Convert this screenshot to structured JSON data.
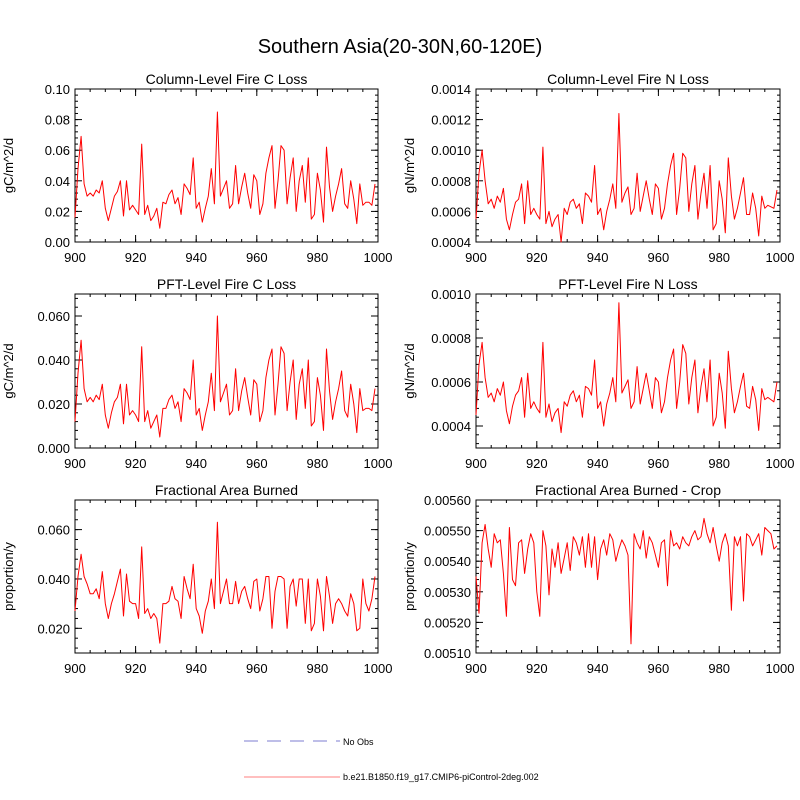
{
  "figure": {
    "title": "Southern Asia(20-30N,60-120E)",
    "legend": [
      {
        "label": "No Obs",
        "style": "dashed",
        "color": "#a8a8e0"
      },
      {
        "label": "b.e21.B1850.f19_g17.CMIP6-piControl-2deg.002",
        "style": "solid",
        "color": "#ff0000"
      }
    ]
  },
  "chart_data": [
    {
      "type": "line",
      "title": "Column-Level Fire C Loss",
      "ylabel": "gC/m^2/d",
      "xlim": [
        900,
        1000
      ],
      "ylim": [
        0,
        0.1
      ],
      "xticks": [
        900,
        920,
        940,
        960,
        980,
        1000
      ],
      "xtick_labels": [
        "900",
        "920",
        "940",
        "960",
        "980",
        "1000"
      ],
      "yticks": [
        0,
        0.02,
        0.04,
        0.06,
        0.08,
        0.1
      ],
      "ytick_labels": [
        "0.00",
        "0.02",
        "0.04",
        "0.06",
        "0.08",
        "0.10"
      ],
      "series": [
        {
          "name": "b.e21.B1850.f19_g17.CMIP6-piControl-2deg.002",
          "color": "#ff0000",
          "x_start": 900,
          "x_step": 1,
          "values": [
            0.016,
            0.048,
            0.069,
            0.038,
            0.03,
            0.032,
            0.03,
            0.034,
            0.032,
            0.04,
            0.022,
            0.014,
            0.022,
            0.03,
            0.033,
            0.04,
            0.017,
            0.04,
            0.021,
            0.024,
            0.021,
            0.018,
            0.064,
            0.018,
            0.024,
            0.014,
            0.017,
            0.022,
            0.009,
            0.026,
            0.025,
            0.031,
            0.034,
            0.025,
            0.029,
            0.018,
            0.038,
            0.035,
            0.031,
            0.055,
            0.022,
            0.026,
            0.013,
            0.022,
            0.03,
            0.048,
            0.025,
            0.085,
            0.03,
            0.035,
            0.04,
            0.022,
            0.025,
            0.05,
            0.025,
            0.036,
            0.045,
            0.032,
            0.022,
            0.044,
            0.04,
            0.018,
            0.025,
            0.045,
            0.055,
            0.063,
            0.022,
            0.04,
            0.063,
            0.06,
            0.025,
            0.042,
            0.055,
            0.02,
            0.04,
            0.05,
            0.026,
            0.055,
            0.015,
            0.018,
            0.045,
            0.034,
            0.013,
            0.062,
            0.036,
            0.02,
            0.03,
            0.038,
            0.048,
            0.025,
            0.022,
            0.04,
            0.028,
            0.012,
            0.038,
            0.024,
            0.026,
            0.026,
            0.024,
            0.038
          ]
        }
      ]
    },
    {
      "type": "line",
      "title": "Column-Level Fire N Loss",
      "ylabel": "gN/m^2/d",
      "xlim": [
        900,
        1000
      ],
      "ylim": [
        0.0004,
        0.0014
      ],
      "xticks": [
        900,
        920,
        940,
        960,
        980,
        1000
      ],
      "xtick_labels": [
        "900",
        "920",
        "940",
        "960",
        "980",
        "1000"
      ],
      "yticks": [
        0.0004,
        0.0006,
        0.0008,
        0.001,
        0.0012,
        0.0014
      ],
      "ytick_labels": [
        "0.0004",
        "0.0006",
        "0.0008",
        "0.0010",
        "0.0012",
        "0.0014"
      ],
      "series": [
        {
          "name": "b.e21.B1850.f19_g17.CMIP6-piControl-2deg.002",
          "color": "#ff0000",
          "x_start": 900,
          "x_step": 1,
          "values": [
            0.00055,
            0.00085,
            0.001,
            0.0008,
            0.00065,
            0.00068,
            0.00062,
            0.0007,
            0.00066,
            0.00075,
            0.00055,
            0.00048,
            0.00058,
            0.00066,
            0.00068,
            0.00078,
            0.00052,
            0.0008,
            0.00058,
            0.00062,
            0.00058,
            0.00055,
            0.00102,
            0.00052,
            0.0006,
            0.0005,
            0.00055,
            0.00058,
            0.0004,
            0.00062,
            0.00058,
            0.00066,
            0.00068,
            0.00062,
            0.00065,
            0.00052,
            0.00072,
            0.0007,
            0.00066,
            0.0009,
            0.00058,
            0.00062,
            0.00048,
            0.0006,
            0.00068,
            0.00078,
            0.00062,
            0.00124,
            0.00066,
            0.00072,
            0.00076,
            0.00058,
            0.00062,
            0.00085,
            0.0006,
            0.0007,
            0.0008,
            0.00068,
            0.00058,
            0.00078,
            0.00075,
            0.00055,
            0.00062,
            0.00078,
            0.0009,
            0.00098,
            0.00058,
            0.00075,
            0.00098,
            0.00095,
            0.0006,
            0.00078,
            0.0009,
            0.00055,
            0.00072,
            0.00085,
            0.00062,
            0.0009,
            0.00048,
            0.00052,
            0.0008,
            0.00068,
            0.00046,
            0.00095,
            0.0007,
            0.00055,
            0.00062,
            0.00072,
            0.00082,
            0.00058,
            0.00058,
            0.00072,
            0.00062,
            0.00044,
            0.0007,
            0.00062,
            0.00064,
            0.00063,
            0.00062,
            0.00074
          ]
        }
      ]
    },
    {
      "type": "line",
      "title": "PFT-Level Fire C Loss",
      "ylabel": "gC/m^2/d",
      "xlim": [
        900,
        1000
      ],
      "ylim": [
        0,
        0.07
      ],
      "xticks": [
        900,
        920,
        940,
        960,
        980,
        1000
      ],
      "xtick_labels": [
        "900",
        "920",
        "940",
        "960",
        "980",
        "1000"
      ],
      "yticks": [
        0,
        0.02,
        0.04,
        0.06
      ],
      "ytick_labels": [
        "0.000",
        "0.020",
        "0.040",
        "0.060"
      ],
      "series": [
        {
          "name": "b.e21.B1850.f19_g17.CMIP6-piControl-2deg.002",
          "color": "#ff0000",
          "x_start": 900,
          "x_step": 1,
          "values": [
            0.012,
            0.034,
            0.049,
            0.027,
            0.021,
            0.023,
            0.021,
            0.024,
            0.022,
            0.029,
            0.015,
            0.009,
            0.016,
            0.021,
            0.023,
            0.029,
            0.011,
            0.029,
            0.015,
            0.017,
            0.015,
            0.012,
            0.046,
            0.012,
            0.017,
            0.009,
            0.012,
            0.015,
            0.005,
            0.018,
            0.018,
            0.022,
            0.024,
            0.018,
            0.021,
            0.012,
            0.027,
            0.025,
            0.022,
            0.04,
            0.015,
            0.018,
            0.008,
            0.015,
            0.021,
            0.034,
            0.017,
            0.06,
            0.021,
            0.025,
            0.029,
            0.015,
            0.017,
            0.036,
            0.017,
            0.026,
            0.032,
            0.023,
            0.015,
            0.031,
            0.029,
            0.012,
            0.017,
            0.032,
            0.04,
            0.045,
            0.015,
            0.029,
            0.046,
            0.043,
            0.017,
            0.03,
            0.04,
            0.013,
            0.029,
            0.036,
            0.018,
            0.04,
            0.01,
            0.012,
            0.032,
            0.024,
            0.008,
            0.045,
            0.026,
            0.013,
            0.021,
            0.027,
            0.035,
            0.017,
            0.014,
            0.029,
            0.02,
            0.007,
            0.027,
            0.017,
            0.018,
            0.018,
            0.017,
            0.027
          ]
        }
      ]
    },
    {
      "type": "line",
      "title": "PFT-Level Fire N Loss",
      "ylabel": "gN/m^2/d",
      "xlim": [
        900,
        1000
      ],
      "ylim": [
        0.0003,
        0.001
      ],
      "xticks": [
        900,
        920,
        940,
        960,
        980,
        1000
      ],
      "xtick_labels": [
        "900",
        "920",
        "940",
        "960",
        "980",
        "1000"
      ],
      "yticks": [
        0.0004,
        0.0006,
        0.0008,
        0.001
      ],
      "ytick_labels": [
        "0.0004",
        "0.0006",
        "0.0008",
        "0.0010"
      ],
      "series": [
        {
          "name": "b.e21.B1850.f19_g17.CMIP6-piControl-2deg.002",
          "color": "#ff0000",
          "x_start": 900,
          "x_step": 1,
          "values": [
            0.00045,
            0.00068,
            0.00078,
            0.00062,
            0.00053,
            0.00055,
            0.00051,
            0.00057,
            0.00054,
            0.0006,
            0.00047,
            0.00041,
            0.00049,
            0.00054,
            0.00056,
            0.00062,
            0.00044,
            0.00064,
            0.00048,
            0.00051,
            0.00048,
            0.00046,
            0.00078,
            0.00044,
            0.0005,
            0.00042,
            0.00046,
            0.00048,
            0.00037,
            0.00051,
            0.00049,
            0.00054,
            0.00056,
            0.00051,
            0.00054,
            0.00044,
            0.00058,
            0.00057,
            0.00054,
            0.0007,
            0.00048,
            0.00051,
            0.0004,
            0.0005,
            0.00055,
            0.00062,
            0.00051,
            0.00096,
            0.00055,
            0.00058,
            0.00061,
            0.00048,
            0.00051,
            0.00067,
            0.0005,
            0.00057,
            0.00064,
            0.00056,
            0.00048,
            0.00062,
            0.0006,
            0.00046,
            0.00051,
            0.00062,
            0.0007,
            0.00075,
            0.00048,
            0.0006,
            0.00077,
            0.00073,
            0.0005,
            0.00062,
            0.0007,
            0.00046,
            0.00058,
            0.00066,
            0.00051,
            0.0007,
            0.0004,
            0.00044,
            0.00064,
            0.00055,
            0.00039,
            0.00074,
            0.00057,
            0.00046,
            0.00051,
            0.00058,
            0.00064,
            0.00049,
            0.00048,
            0.00058,
            0.00052,
            0.00038,
            0.00057,
            0.00052,
            0.00053,
            0.00052,
            0.00051,
            0.0006
          ]
        }
      ]
    },
    {
      "type": "line",
      "title": "Fractional Area Burned",
      "ylabel": "proportion/y",
      "xlim": [
        900,
        1000
      ],
      "ylim": [
        0.01,
        0.072
      ],
      "xticks": [
        900,
        920,
        940,
        960,
        980,
        1000
      ],
      "xtick_labels": [
        "900",
        "920",
        "940",
        "960",
        "980",
        "1000"
      ],
      "yticks": [
        0.02,
        0.04,
        0.06
      ],
      "ytick_labels": [
        "0.020",
        "0.040",
        "0.060"
      ],
      "series": [
        {
          "name": "b.e21.B1850.f19_g17.CMIP6-piControl-2deg.002",
          "color": "#ff0000",
          "x_start": 900,
          "x_step": 1,
          "values": [
            0.027,
            0.041,
            0.05,
            0.041,
            0.038,
            0.034,
            0.034,
            0.036,
            0.032,
            0.043,
            0.03,
            0.024,
            0.03,
            0.034,
            0.039,
            0.044,
            0.025,
            0.042,
            0.031,
            0.03,
            0.03,
            0.024,
            0.053,
            0.026,
            0.028,
            0.024,
            0.026,
            0.024,
            0.014,
            0.03,
            0.03,
            0.031,
            0.037,
            0.032,
            0.031,
            0.024,
            0.041,
            0.036,
            0.032,
            0.046,
            0.028,
            0.025,
            0.018,
            0.027,
            0.031,
            0.04,
            0.028,
            0.063,
            0.03,
            0.035,
            0.04,
            0.03,
            0.03,
            0.039,
            0.03,
            0.035,
            0.037,
            0.032,
            0.028,
            0.039,
            0.04,
            0.027,
            0.032,
            0.041,
            0.041,
            0.02,
            0.035,
            0.041,
            0.041,
            0.04,
            0.02,
            0.037,
            0.04,
            0.029,
            0.04,
            0.04,
            0.022,
            0.04,
            0.019,
            0.022,
            0.04,
            0.033,
            0.019,
            0.041,
            0.033,
            0.022,
            0.03,
            0.032,
            0.03,
            0.027,
            0.025,
            0.034,
            0.03,
            0.019,
            0.02,
            0.04,
            0.03,
            0.027,
            0.032,
            0.041
          ]
        }
      ]
    },
    {
      "type": "line",
      "title": "Fractional Area Burned - Crop",
      "ylabel": "proportion/y",
      "xlim": [
        900,
        1000
      ],
      "ylim": [
        0.0051,
        0.0056
      ],
      "xticks": [
        900,
        920,
        940,
        960,
        980,
        1000
      ],
      "xtick_labels": [
        "900",
        "920",
        "940",
        "960",
        "980",
        "1000"
      ],
      "yticks": [
        0.0051,
        0.0052,
        0.0053,
        0.0054,
        0.0055,
        0.0056
      ],
      "ytick_labels": [
        "0.00510",
        "0.00520",
        "0.00530",
        "0.00540",
        "0.00550",
        "0.00560"
      ],
      "series": [
        {
          "name": "b.e21.B1850.f19_g17.CMIP6-piControl-2deg.002",
          "color": "#ff0000",
          "x_start": 900,
          "x_step": 1,
          "values": [
            0.00535,
            0.00523,
            0.00546,
            0.00552,
            0.00544,
            0.00538,
            0.00549,
            0.00546,
            0.00547,
            0.00536,
            0.00522,
            0.00551,
            0.00534,
            0.00532,
            0.00546,
            0.00547,
            0.00536,
            0.00544,
            0.00549,
            0.00546,
            0.0053,
            0.00522,
            0.0055,
            0.00545,
            0.00529,
            0.00544,
            0.00538,
            0.00546,
            0.00536,
            0.00541,
            0.00546,
            0.00537,
            0.00548,
            0.00546,
            0.00542,
            0.00548,
            0.00538,
            0.00549,
            0.00538,
            0.00548,
            0.00534,
            0.00544,
            0.00547,
            0.00542,
            0.00549,
            0.00547,
            0.0054,
            0.00544,
            0.00547,
            0.00545,
            0.00542,
            0.00513,
            0.00549,
            0.00546,
            0.00544,
            0.0055,
            0.00541,
            0.00548,
            0.00546,
            0.00542,
            0.00538,
            0.00546,
            0.00547,
            0.00532,
            0.0055,
            0.00545,
            0.00546,
            0.00544,
            0.00548,
            0.00546,
            0.00545,
            0.00548,
            0.0055,
            0.00547,
            0.00548,
            0.00554,
            0.00549,
            0.00546,
            0.00551,
            0.00545,
            0.0054,
            0.00546,
            0.00549,
            0.00545,
            0.00524,
            0.00548,
            0.00545,
            0.00548,
            0.00527,
            0.00549,
            0.00548,
            0.00545,
            0.00547,
            0.00549,
            0.00542,
            0.00551,
            0.0055,
            0.00549,
            0.00544,
            0.00545
          ]
        }
      ]
    }
  ]
}
